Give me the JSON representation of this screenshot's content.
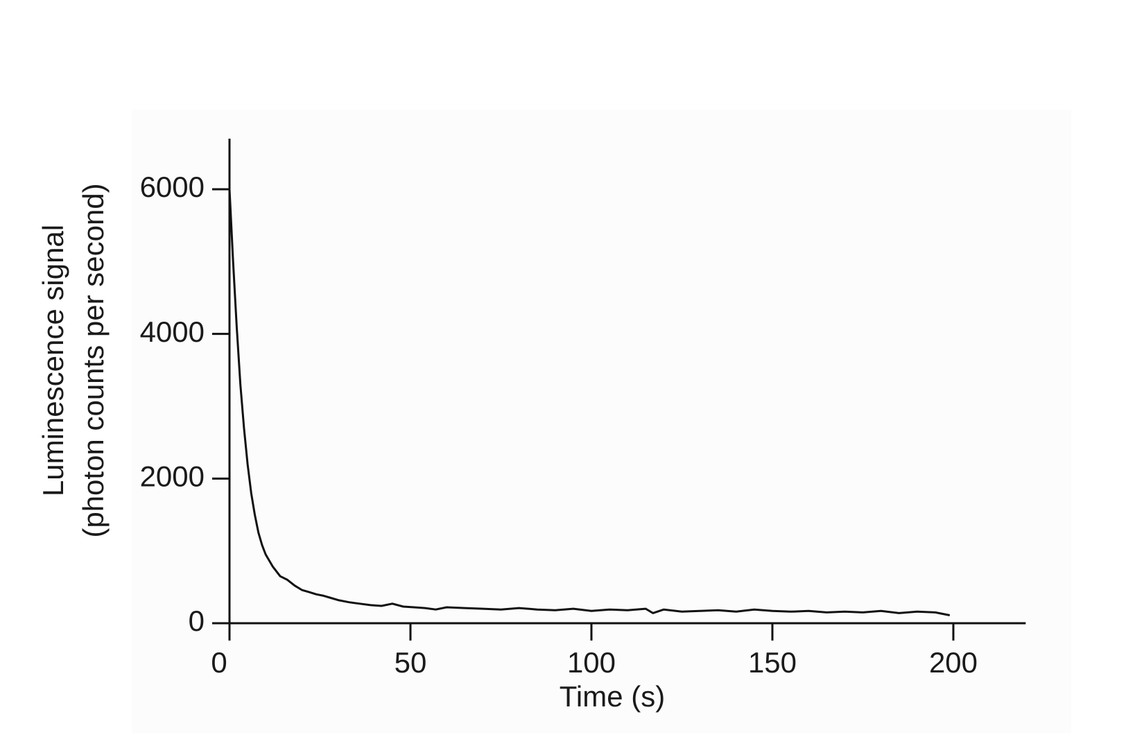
{
  "chart_data": {
    "type": "line",
    "xlabel": "Time (s)",
    "ylabel": [
      "Luminescence signal",
      "(photon counts per second)"
    ],
    "x": [
      0,
      1,
      2,
      3,
      4,
      5,
      6,
      7,
      8,
      9,
      10,
      12,
      14,
      16,
      18,
      20,
      22,
      24,
      26,
      28,
      30,
      33,
      36,
      39,
      42,
      45,
      48,
      51,
      54,
      57,
      60,
      65,
      70,
      75,
      80,
      85,
      90,
      95,
      100,
      105,
      110,
      115,
      117,
      120,
      125,
      130,
      135,
      140,
      145,
      150,
      155,
      160,
      165,
      170,
      175,
      180,
      185,
      190,
      195,
      199
    ],
    "series": [
      {
        "color": "#111111",
        "values": [
          6000,
          5000,
          4100,
          3300,
          2700,
          2200,
          1800,
          1500,
          1250,
          1080,
          950,
          780,
          650,
          600,
          520,
          460,
          430,
          400,
          380,
          350,
          320,
          290,
          270,
          250,
          240,
          270,
          230,
          220,
          210,
          190,
          220,
          210,
          200,
          190,
          210,
          190,
          180,
          200,
          170,
          190,
          180,
          200,
          140,
          190,
          160,
          170,
          180,
          160,
          190,
          170,
          160,
          170,
          150,
          160,
          150,
          170,
          140,
          160,
          150,
          110
        ]
      }
    ],
    "xlim": [
      0,
      220
    ],
    "xticks": [
      0,
      50,
      100,
      150,
      200
    ],
    "ylim": [
      0,
      6700
    ],
    "yticks": [
      0,
      2000,
      4000,
      6000
    ]
  }
}
